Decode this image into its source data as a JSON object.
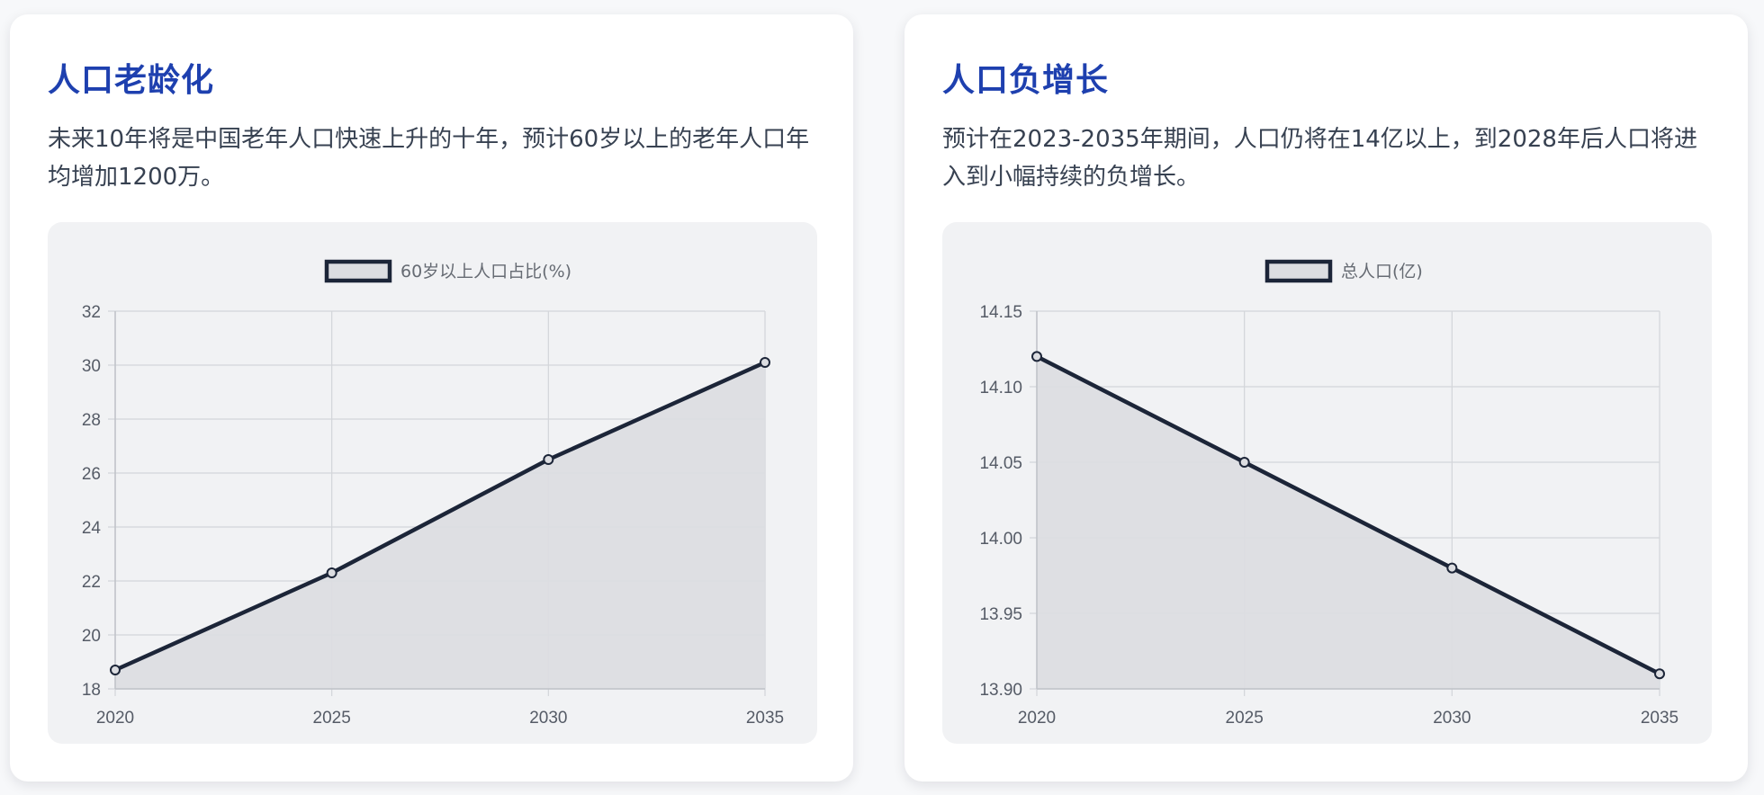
{
  "cards": [
    {
      "title": "人口老龄化",
      "description": "未来10年将是中国老年人口快速上升的十年，预计60岁以上的老年人口年均增加1200万。"
    },
    {
      "title": "人口负增长",
      "description": "预计在2023-2035年期间，人口仍将在14亿以上，到2028年后人口将进入到小幅持续的负增长。"
    }
  ],
  "colors": {
    "title": "#1e40af",
    "line": "#1c2538",
    "fill": "#dcdde1",
    "grid": "#d3d5d9",
    "chart_bg": "#f1f2f4"
  },
  "chart_data": [
    {
      "type": "area",
      "x": [
        "2020",
        "2025",
        "2030",
        "2035"
      ],
      "series": [
        {
          "name": "60岁以上人口占比(%)",
          "values": [
            18.7,
            22.3,
            26.5,
            30.1
          ]
        }
      ],
      "xlabel": "",
      "ylabel": "",
      "ylim": [
        18,
        32
      ],
      "yticks": [
        "32",
        "30",
        "28",
        "26",
        "24",
        "22",
        "20",
        "18"
      ],
      "grid": true,
      "legend": "top-center"
    },
    {
      "type": "area",
      "x": [
        "2020",
        "2025",
        "2030",
        "2035"
      ],
      "series": [
        {
          "name": "总人口(亿)",
          "values": [
            14.12,
            14.05,
            13.98,
            13.91
          ]
        }
      ],
      "xlabel": "",
      "ylabel": "",
      "ylim": [
        13.9,
        14.15
      ],
      "yticks": [
        "14.15",
        "14.10",
        "14.05",
        "14.00",
        "13.95",
        "13.90"
      ],
      "grid": true,
      "legend": "top-center"
    }
  ]
}
